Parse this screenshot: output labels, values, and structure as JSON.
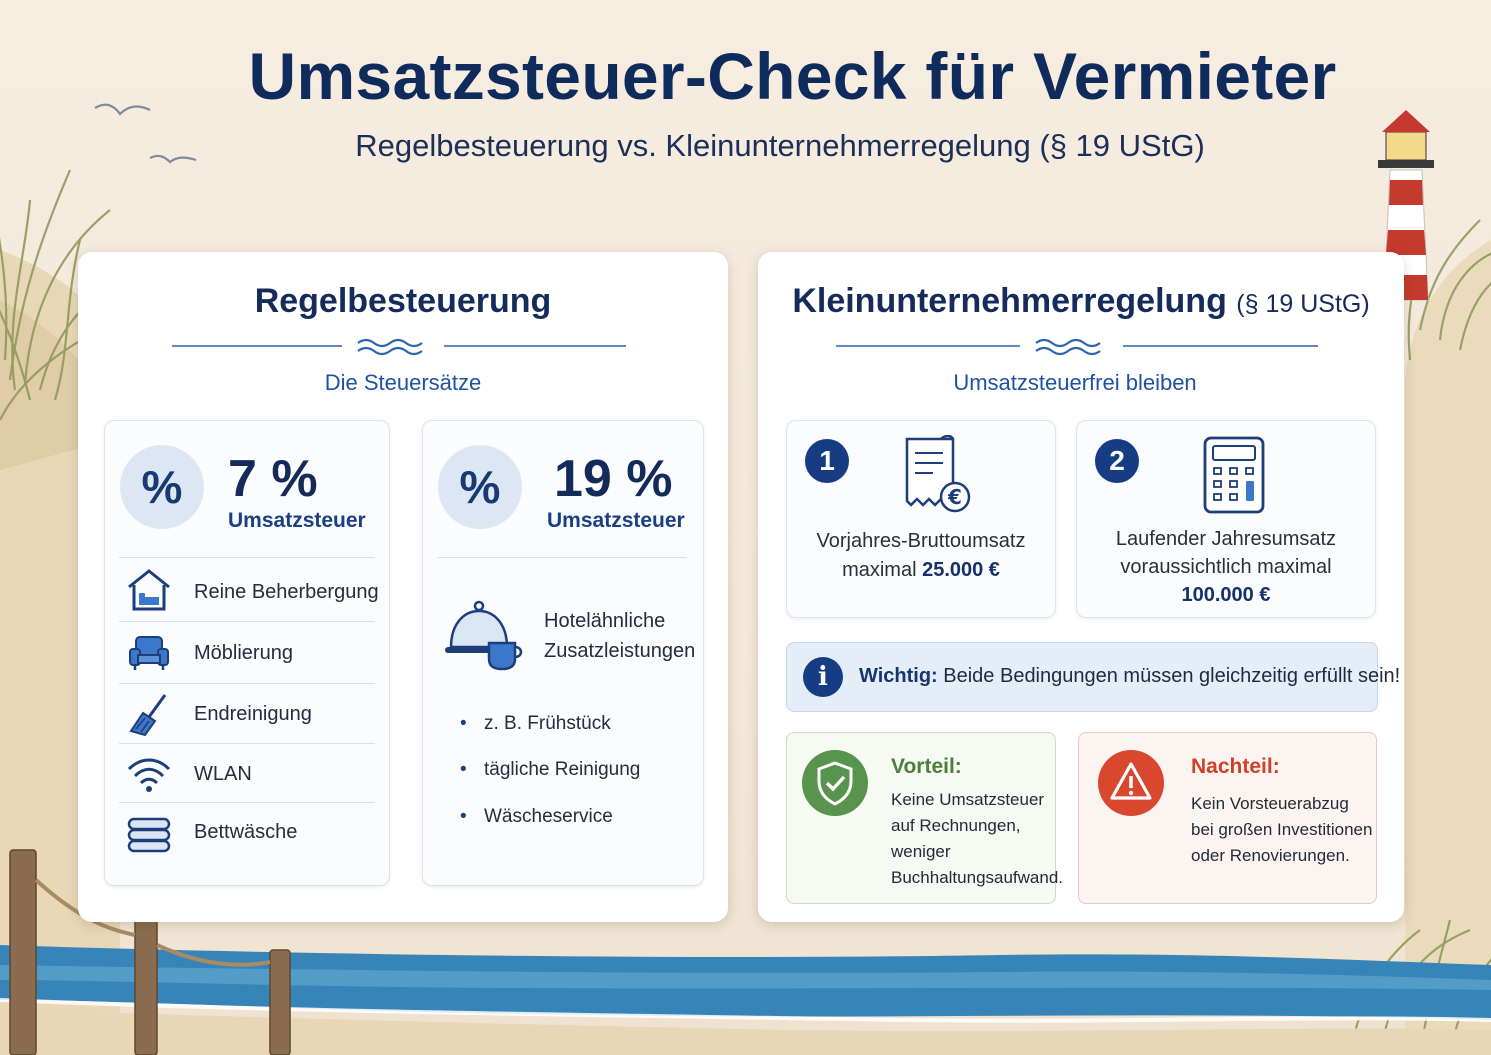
{
  "header": {
    "title": "Umsatzsteuer-Check für Vermieter",
    "subtitle": "Regelbesteuerung vs. Kleinunternehmerregelung (§ 19 UStG)"
  },
  "left_panel": {
    "title": "Regelbesteuerung",
    "section_title": "Die Steuersätze",
    "card_7": {
      "symbol": "%",
      "rate": "7 %",
      "label": "Umsatzsteuer",
      "items": [
        {
          "icon": "house-bed-icon",
          "label": "Reine Beherbergung"
        },
        {
          "icon": "armchair-icon",
          "label": "Möblierung"
        },
        {
          "icon": "broom-icon",
          "label": "Endreinigung"
        },
        {
          "icon": "wifi-icon",
          "label": "WLAN"
        },
        {
          "icon": "folded-linen-icon",
          "label": "Bettwäsche"
        }
      ]
    },
    "card_19": {
      "symbol": "%",
      "rate": "19 %",
      "label": "Umsatzsteuer",
      "service_icon": "cloche-cup-icon",
      "service_line1": "Hotelähnliche",
      "service_line2": "Zusatzleistungen",
      "bullets": [
        "z. B. Frühstück",
        "tägliche Reinigung",
        "Wäscheservice"
      ]
    }
  },
  "right_panel": {
    "title": "Kleinunternehmerregelung",
    "title_suffix": "(§ 19 UStG)",
    "section_title": "Umsatzsteuerfrei bleiben",
    "conditions": [
      {
        "number": "1",
        "icon": "receipt-euro-icon",
        "line1": "Vorjahres-Bruttoumsatz",
        "line2_prefix": "maximal",
        "amount": "25.000 €"
      },
      {
        "number": "2",
        "icon": "calculator-icon",
        "line1": "Laufender Jahresumsatz",
        "line2": "voraussichtlich maximal",
        "amount": "100.000 €"
      }
    ],
    "info": {
      "symbol": "i",
      "label": "Wichtig:",
      "text": "Beide Bedingungen müssen gleichzeitig erfüllt sein!"
    },
    "advantage": {
      "title": "Vorteil:",
      "lines": [
        "Keine Umsatzsteuer",
        "auf Rechnungen,",
        "weniger",
        "Buchhaltungsaufwand."
      ]
    },
    "disadvantage": {
      "title": "Nachteil:",
      "lines": [
        "Kein Vorsteuerabzug",
        "bei großen Investitionen",
        "oder Renovierungen."
      ]
    }
  },
  "colors": {
    "navy": "#0f2b5c",
    "accent_blue": "#1f52a0",
    "green": "#4f8a45",
    "red": "#d7462e",
    "sea": "#2f7fb4",
    "sand": "#efe2cf"
  }
}
